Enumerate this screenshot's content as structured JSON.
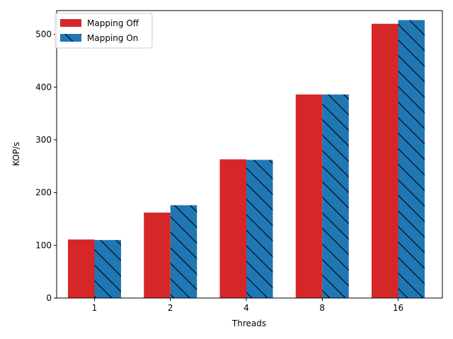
{
  "chart_data": {
    "type": "bar",
    "categories": [
      "1",
      "2",
      "4",
      "8",
      "16"
    ],
    "series": [
      {
        "name": "Mapping Off",
        "values": [
          111,
          162,
          263,
          386,
          520
        ],
        "color": "#d62728",
        "hatch": false
      },
      {
        "name": "Mapping On",
        "values": [
          110,
          176,
          262,
          386,
          527
        ],
        "color": "#1f77b4",
        "hatch": true
      }
    ],
    "xlabel": "Threads",
    "ylabel": "KOP/s",
    "ylim": [
      0,
      545
    ],
    "yticks": [
      0,
      100,
      200,
      300,
      400,
      500
    ],
    "grid": false,
    "legend_position": "upper-left"
  }
}
